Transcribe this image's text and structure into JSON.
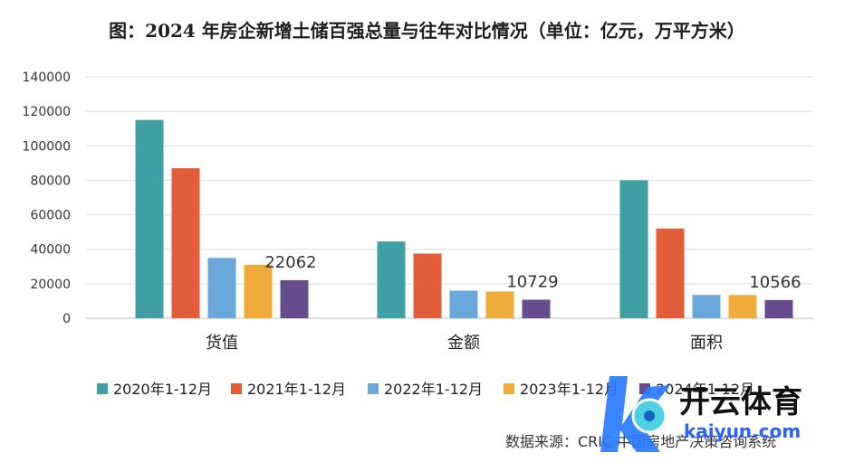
{
  "chart_data": {
    "type": "bar",
    "title": "图：2024 年房企新增土储百强总量与往年对比情况（单位：亿元，万平方米）",
    "categories": [
      "货值",
      "金额",
      "面积"
    ],
    "series": [
      {
        "name": "2020年1-12月",
        "values": [
          115000,
          44500,
          80000
        ]
      },
      {
        "name": "2021年1-12月",
        "values": [
          87000,
          37500,
          52000
        ]
      },
      {
        "name": "2022年1-12月",
        "values": [
          35000,
          16000,
          13500
        ]
      },
      {
        "name": "2023年1-12月",
        "values": [
          31000,
          15500,
          13500
        ]
      },
      {
        "name": "2024年1-12月",
        "values": [
          22062,
          10729,
          10566
        ]
      }
    ],
    "data_labels": [
      "22062",
      "10729",
      "10566"
    ],
    "yticks": [
      "0",
      "20000",
      "40000",
      "60000",
      "80000",
      "100000",
      "120000",
      "140000"
    ],
    "ylim": [
      0,
      140000
    ],
    "grid": true,
    "legend_position": "bottom",
    "colors": [
      "#3f9fa4",
      "#e35d3b",
      "#6aa7da",
      "#f0ac3a",
      "#664c8e"
    ],
    "source": "数据来源：CRIC 中国房地产决策咨询系统"
  },
  "watermark": {
    "brand_text": "开云体育",
    "domain_text": "kaiyun.com",
    "colors": [
      "#4dd0e1",
      "#2962ff",
      "#ffffff"
    ]
  }
}
